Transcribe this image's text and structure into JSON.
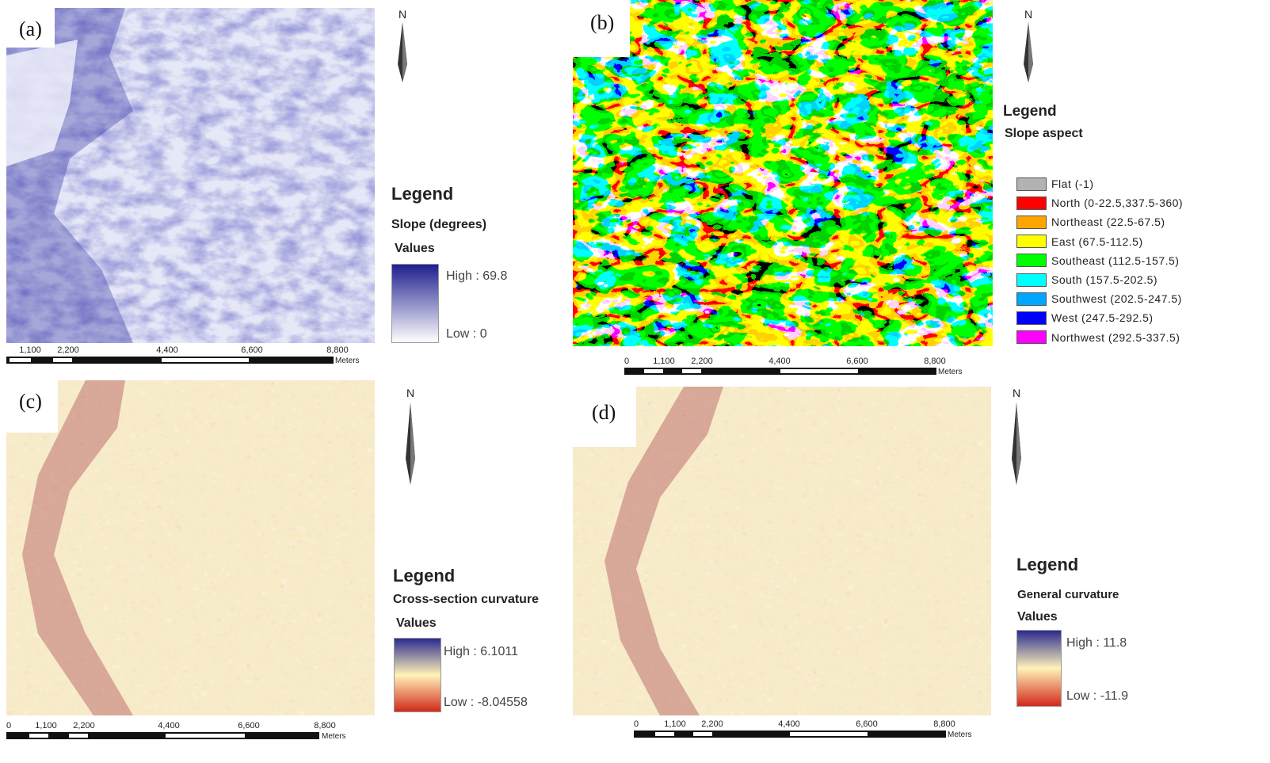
{
  "panels": {
    "a": {
      "label": "(a)",
      "legend_title": "Legend",
      "layer_name": "Slope (degrees)",
      "values_label": "Values",
      "high": "High : 69.8",
      "low": "Low : 0",
      "ramp_colors": [
        "#1f1f8f",
        "#ffffff"
      ],
      "scale_ticks": [
        "1,100",
        "2,200",
        "4,400",
        "6,600",
        "8,800"
      ],
      "scale_unit": "Meters"
    },
    "b": {
      "label": "(b)",
      "legend_title": "Legend",
      "layer_name": "Slope aspect",
      "classes": [
        {
          "label": "Flat (-1)",
          "color": "#b2b2b2"
        },
        {
          "label": "North (0-22.5,337.5-360)",
          "color": "#ff0000"
        },
        {
          "label": "Northeast (22.5-67.5)",
          "color": "#ffa500"
        },
        {
          "label": "East (67.5-112.5)",
          "color": "#ffff00"
        },
        {
          "label": "Southeast (112.5-157.5)",
          "color": "#00ff00"
        },
        {
          "label": "South (157.5-202.5)",
          "color": "#00ffff"
        },
        {
          "label": "Southwest (202.5-247.5)",
          "color": "#00a6ff"
        },
        {
          "label": "West (247.5-292.5)",
          "color": "#0000ff"
        },
        {
          "label": "Northwest (292.5-337.5)",
          "color": "#ff00ff"
        }
      ],
      "scale_ticks": [
        "0",
        "1,100",
        "2,200",
        "4,400",
        "6,600",
        "8,800"
      ],
      "scale_unit": "Meters"
    },
    "c": {
      "label": "(c)",
      "legend_title": "Legend",
      "layer_name": "Cross-section curvature",
      "values_label": "Values",
      "high": "High : 6.1011",
      "low": "Low : -8.04558",
      "ramp_colors": [
        "#2b2b8f",
        "#fff3b8",
        "#d22a1a"
      ],
      "scale_ticks": [
        "0",
        "1,100",
        "2,200",
        "4,400",
        "6,600",
        "8,800"
      ],
      "scale_unit": "Meters"
    },
    "d": {
      "label": "(d)",
      "legend_title": "Legend",
      "layer_name": "General curvature",
      "values_label": "Values",
      "high": "High : 11.8",
      "low": "Low : -11.9",
      "ramp_colors": [
        "#2b2b8f",
        "#fff3b8",
        "#d22a1a"
      ],
      "scale_ticks": [
        "0",
        "1,100",
        "2,200",
        "4,400",
        "6,600",
        "8,800"
      ],
      "scale_unit": "Meters"
    }
  },
  "north_label": "N"
}
